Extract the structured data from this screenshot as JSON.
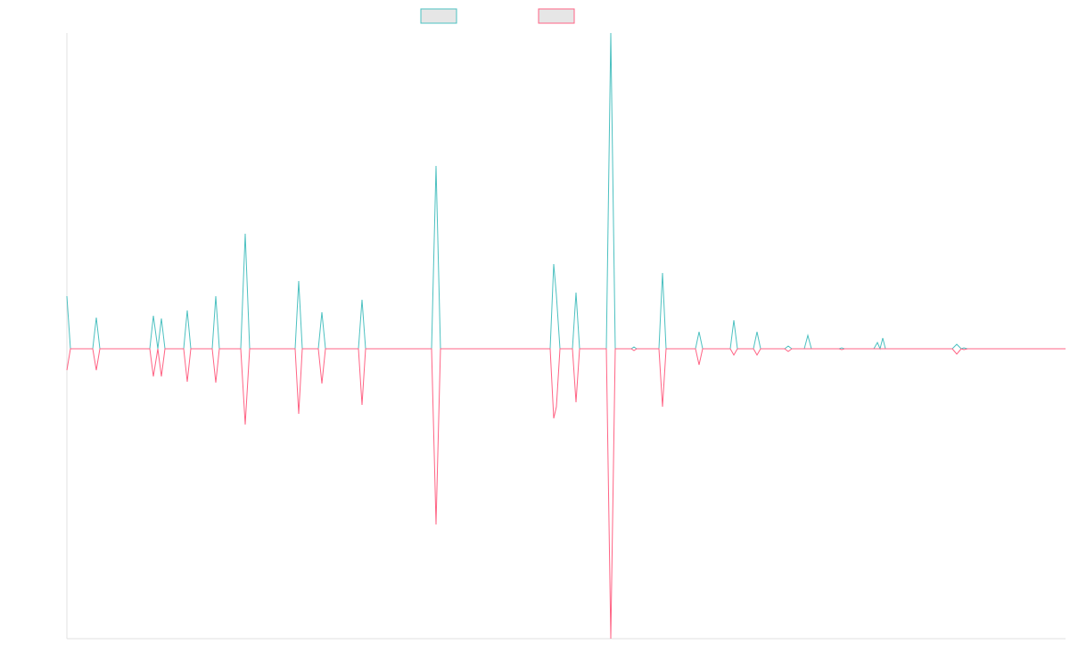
{
  "chart_data": {
    "type": "line",
    "x": [
      0,
      4,
      29,
      33,
      37,
      93,
      97,
      102,
      106,
      110,
      131,
      135,
      139,
      163,
      167,
      171,
      195,
      200,
      205,
      256,
      260,
      264,
      282,
      286,
      290,
      327,
      331,
      335,
      409,
      414,
      419,
      542,
      546,
      549,
      553,
      567,
      571,
      575,
      605,
      610,
      615,
      633,
      636,
      639,
      664,
      668,
      672,
      705,
      709,
      713,
      744,
      748,
      752,
      770,
      774,
      778,
      805,
      809,
      813,
      827,
      831,
      835,
      866,
      869,
      872,
      905,
      909,
      912,
      915,
      918,
      993,
      998,
      1003,
      1006,
      1010,
      1120
    ],
    "series": [
      {
        "color": "#4bc0c0",
        "values": [
          59,
          0,
          0,
          35,
          0,
          0,
          37,
          0,
          34,
          0,
          0,
          43,
          0,
          0,
          59,
          0,
          0,
          129,
          0,
          0,
          76,
          0,
          0,
          41,
          0,
          0,
          55,
          0,
          0,
          205,
          0,
          0,
          95,
          60,
          0,
          0,
          63,
          0,
          0,
          354,
          0,
          0,
          2,
          0,
          0,
          85,
          0,
          0,
          19,
          0,
          0,
          32,
          0,
          0,
          19,
          0,
          0,
          3,
          0,
          0,
          15,
          0,
          0,
          1,
          0,
          0,
          7,
          0,
          12,
          0,
          0,
          5,
          0,
          1,
          0,
          0
        ]
      },
      {
        "color": "#ff6384",
        "values": [
          -24,
          0,
          0,
          -24,
          0,
          0,
          -31,
          0,
          -31,
          0,
          0,
          -37,
          0,
          0,
          -38,
          0,
          0,
          -85,
          0,
          0,
          -73,
          0,
          0,
          -39,
          0,
          0,
          -63,
          0,
          0,
          -197,
          0,
          0,
          -78,
          -65,
          0,
          0,
          -60,
          0,
          0,
          -325,
          0,
          0,
          -2,
          0,
          0,
          -65,
          0,
          0,
          -18,
          0,
          0,
          -7,
          0,
          0,
          -7,
          0,
          0,
          -3,
          0,
          0,
          0,
          0,
          0,
          -1,
          0,
          0,
          0,
          0,
          0,
          0,
          0,
          -6,
          0,
          -1,
          0,
          0
        ]
      }
    ],
    "xlim": [
      0,
      1120
    ],
    "ylim": [
      -325,
      354
    ]
  }
}
